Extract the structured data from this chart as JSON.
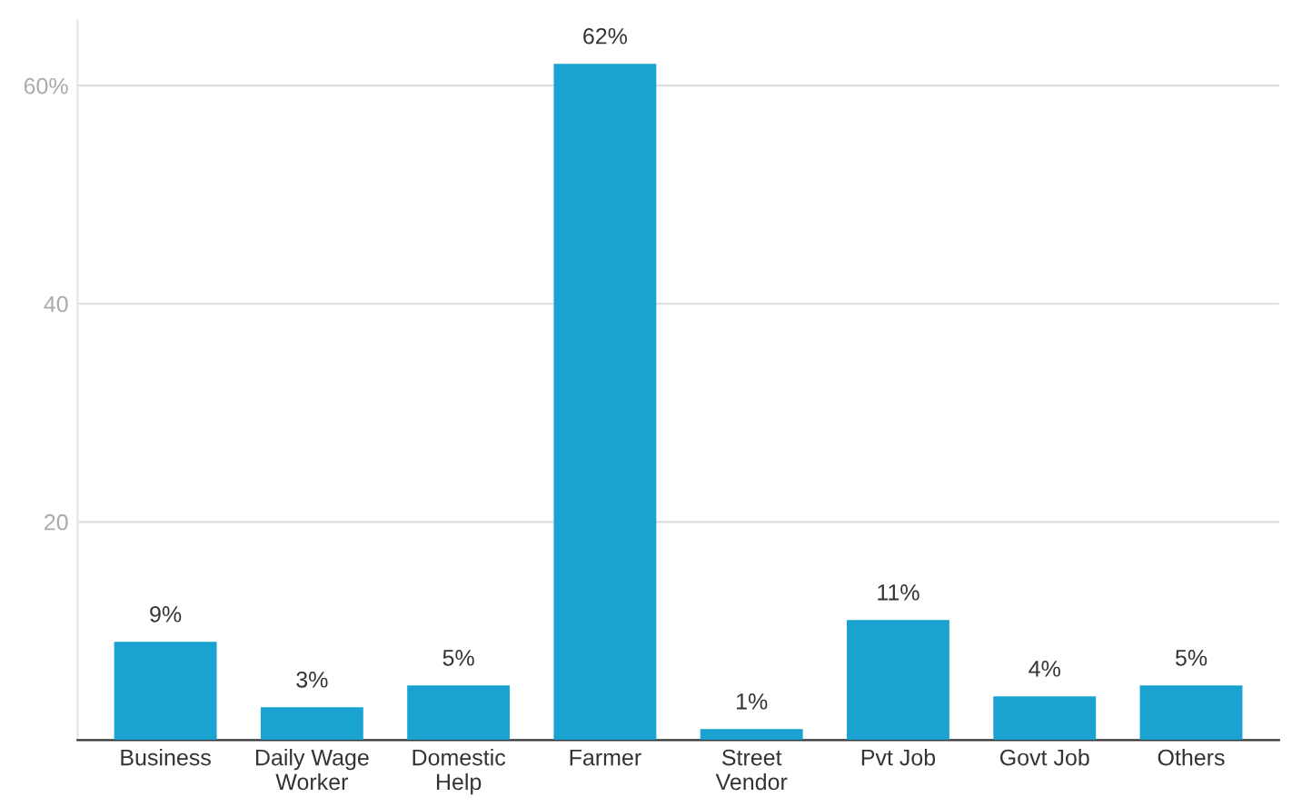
{
  "chart_data": {
    "type": "bar",
    "categories": [
      "Business",
      "Daily Wage\nWorker",
      "Domestic\nHelp",
      "Farmer",
      "Street\nVendor",
      "Pvt Job",
      "Govt Job",
      "Others"
    ],
    "values": [
      9,
      3,
      5,
      62,
      1,
      11,
      4,
      5
    ],
    "value_labels": [
      "9%",
      "3%",
      "5%",
      "62%",
      "1%",
      "11%",
      "4%",
      "5%"
    ],
    "color": "#1aa3d0",
    "ylim": [
      0,
      66
    ],
    "yticks": [
      20,
      40,
      {
        "value": 60,
        "label": "60%"
      }
    ],
    "grid": "y"
  }
}
